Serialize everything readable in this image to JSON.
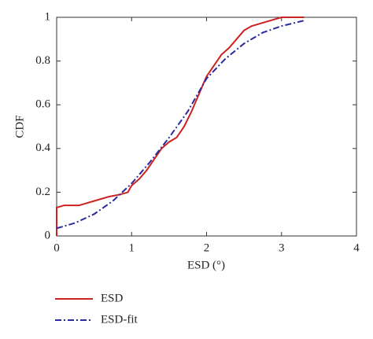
{
  "chart_data": {
    "type": "line",
    "x_label": "ESD (°)",
    "y_label": "CDF",
    "xlim": [
      0,
      4
    ],
    "xticks": [
      0,
      1,
      2,
      3,
      4
    ],
    "ylim": [
      0,
      1
    ],
    "yticks": [
      0,
      0.2,
      0.4,
      0.6,
      0.8,
      1
    ],
    "legend": "bottom",
    "series": [
      {
        "name": "ESD",
        "color": "#cc2222",
        "linestyle": "solid",
        "x": [
          0,
          0,
          0.1,
          0.3,
          0.4,
          0.5,
          0.6,
          0.7,
          0.85,
          0.95,
          1.0,
          1.1,
          1.2,
          1.3,
          1.4,
          1.5,
          1.6,
          1.7,
          1.8,
          1.9,
          2.0,
          2.1,
          2.2,
          2.3,
          2.4,
          2.5,
          2.6,
          2.8,
          3.0,
          3.3
        ],
        "values": [
          0,
          0.13,
          0.14,
          0.14,
          0.15,
          0.16,
          0.17,
          0.18,
          0.19,
          0.2,
          0.23,
          0.26,
          0.3,
          0.35,
          0.4,
          0.43,
          0.45,
          0.5,
          0.57,
          0.65,
          0.73,
          0.78,
          0.83,
          0.86,
          0.9,
          0.94,
          0.96,
          0.98,
          1.0,
          1.0
        ]
      },
      {
        "name": "ESD-fit",
        "color": "#2a2a9a",
        "linestyle": "dashdot",
        "x": [
          0,
          0.25,
          0.5,
          0.75,
          1,
          1.25,
          1.5,
          1.75,
          2,
          2.25,
          2.5,
          2.75,
          3,
          3.3
        ],
        "values": [
          0.035,
          0.06,
          0.1,
          0.16,
          0.24,
          0.34,
          0.45,
          0.57,
          0.72,
          0.81,
          0.88,
          0.93,
          0.96,
          0.985
        ]
      }
    ]
  }
}
